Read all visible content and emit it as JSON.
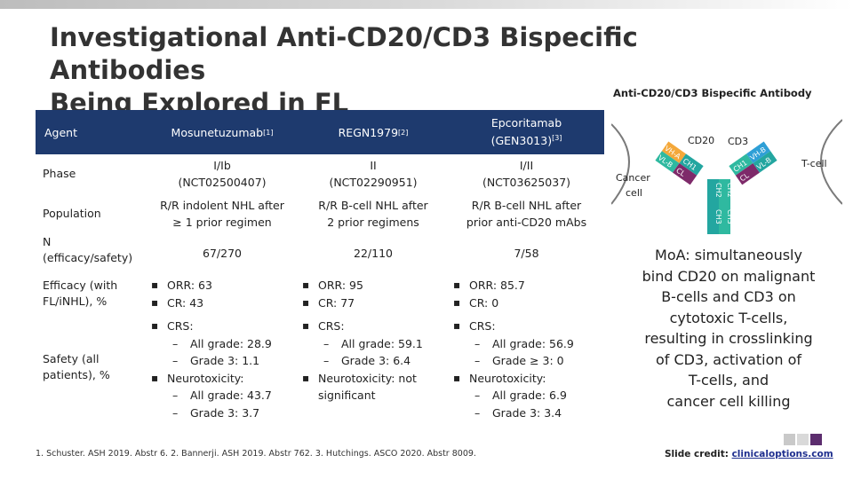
{
  "slide": {
    "title_line1": "Investigational Anti-CD20/CD3 Bispecific Antibodies",
    "title_line2": "Being Explored in FL"
  },
  "diagram": {
    "title": "Anti-CD20/CD3 Bispecific Antibody",
    "cd20_label": "CD20",
    "cd3_label": "CD3",
    "tcell_label": "T-cell",
    "cancer_label_line1": "Cancer",
    "cancer_label_line2": "cell",
    "chain_left": [
      "VH-A",
      "VL-B",
      "CH1",
      "CL"
    ],
    "chain_right": [
      "VH-B",
      "VL-B",
      "CH1",
      "CL"
    ],
    "stem": [
      "CH2",
      "CH2",
      "CH3",
      "CH3"
    ],
    "colors": {
      "orange": "#f4a83a",
      "green": "#2fb9a0",
      "teal": "#23a6a0",
      "purple": "#7e2a6a",
      "blue": "#2e9fd6"
    }
  },
  "table": {
    "headers": {
      "agent": "Agent",
      "mosun_name": "Mosunetuzumab",
      "mosun_ref": "[1]",
      "regn_name": "REGN1979",
      "regn_ref": "[2]",
      "epco_line1": "Epcoritamab",
      "epco_line2": "(GEN3013)",
      "epco_ref": "[3]"
    },
    "phase": {
      "label": "Phase",
      "mosun_1": "I/Ib",
      "mosun_2": "(NCT02500407)",
      "regn_1": "II",
      "regn_2": "(NCT02290951)",
      "epco_1": "I/II",
      "epco_2": "(NCT03625037)"
    },
    "population": {
      "label": "Population",
      "mosun_1": "R/R indolent NHL after",
      "mosun_2": "≥ 1 prior regimen",
      "regn_1": "R/R B-cell NHL after",
      "regn_2": "2 prior regimens",
      "epco_1": "R/R B-cell NHL after",
      "epco_2": "prior anti-CD20 mAbs"
    },
    "n": {
      "label_1": "N",
      "label_2": "(efficacy/safety)",
      "mosun": "67/270",
      "regn": "22/110",
      "epco": "7/58"
    },
    "efficacy": {
      "label_1": "Efficacy (with",
      "label_2": "FL/iNHL), %",
      "mosun": [
        "ORR: 63",
        "CR: 43"
      ],
      "regn": [
        "ORR: 95",
        "CR: 77"
      ],
      "epco": [
        "ORR: 85.7",
        "CR: 0"
      ]
    },
    "safety": {
      "label_1": "Safety (all",
      "label_2": "patients), %",
      "mosun": {
        "crs": "CRS:",
        "all": "All grade: 28.9",
        "g3": "Grade 3: 1.1",
        "neuro": "Neurotoxicity:",
        "n_all": "All grade: 43.7",
        "n_g3": "Grade 3: 3.7"
      },
      "regn": {
        "crs": "CRS:",
        "all": "All grade: 59.1",
        "g3": "Grade 3: 6.4",
        "neuro_1": "Neurotoxicity: not",
        "neuro_2": "significant"
      },
      "epco": {
        "crs": "CRS:",
        "all": "All grade: 56.9",
        "g3": "Grade ≥ 3: 0",
        "neuro": "Neurotoxicity:",
        "n_all": "All grade: 6.9",
        "n_g3": "Grade 3: 3.4"
      }
    }
  },
  "mechanism": {
    "line1": "MoA: simultaneously",
    "line2": "bind CD20 on malignant",
    "line3": "B-cells and CD3 on",
    "line4": "cytotoxic T-cells,",
    "line5": "resulting in crosslinking",
    "line6": "of CD3, activation of",
    "line7": "T-cells, and",
    "line8": "cancer cell killing"
  },
  "footnote": "1. Schuster. ASH 2019. Abstr 6. 2. Bannerji. ASH 2019. Abstr 762. 3. Hutchings. ASCO 2020. Abstr 8009.",
  "credit": {
    "prefix": "Slide credit: ",
    "link": "clinicaloptions.com"
  },
  "colors": {
    "header_bg": "#1e3a6e",
    "title": "#333333",
    "link": "#1f2f8f"
  }
}
